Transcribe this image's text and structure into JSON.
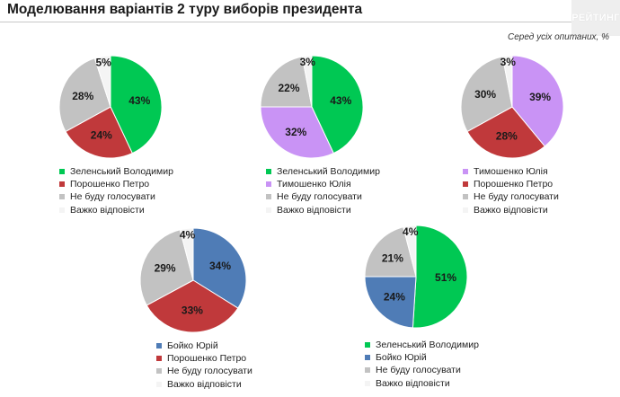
{
  "title": "Моделювання варіантів 2 туру виборів президента",
  "logo": "РЕЙТИНГ",
  "subtitle": "Серед усіх опитаних, %",
  "colors": {
    "green": "#00c853",
    "red": "#c0393b",
    "gray": "#c2c2c2",
    "white": "#f4f4f4",
    "purple": "#c993f5",
    "blue": "#4f7cb6"
  },
  "chart_data": [
    {
      "type": "pie",
      "slices": [
        {
          "label": "Зеленський Володимир",
          "value": 43,
          "color": "#00c853"
        },
        {
          "label": "Порошенко Петро",
          "value": 24,
          "color": "#c0393b"
        },
        {
          "label": "Не буду голосувати",
          "value": 28,
          "color": "#c2c2c2"
        },
        {
          "label": "Важко відповісти",
          "value": 5,
          "color": "#f4f4f4"
        }
      ]
    },
    {
      "type": "pie",
      "slices": [
        {
          "label": "Зеленський Володимир",
          "value": 43,
          "color": "#00c853"
        },
        {
          "label": "Тимошенко Юлія",
          "value": 32,
          "color": "#c993f5"
        },
        {
          "label": "Не буду голосувати",
          "value": 22,
          "color": "#c2c2c2"
        },
        {
          "label": "Важко відповісти",
          "value": 3,
          "color": "#f4f4f4"
        }
      ]
    },
    {
      "type": "pie",
      "slices": [
        {
          "label": "Тимошенко Юлія",
          "value": 39,
          "color": "#c993f5"
        },
        {
          "label": "Порошенко Петро",
          "value": 28,
          "color": "#c0393b"
        },
        {
          "label": "Не буду голосувати",
          "value": 30,
          "color": "#c2c2c2"
        },
        {
          "label": "Важко відповісти",
          "value": 3,
          "color": "#f4f4f4"
        }
      ]
    },
    {
      "type": "pie",
      "slices": [
        {
          "label": "Бойко Юрій",
          "value": 34,
          "color": "#4f7cb6"
        },
        {
          "label": "Порошенко Петро",
          "value": 33,
          "color": "#c0393b"
        },
        {
          "label": "Не буду голосувати",
          "value": 29,
          "color": "#c2c2c2"
        },
        {
          "label": "Важко відповісти",
          "value": 4,
          "color": "#f4f4f4"
        }
      ]
    },
    {
      "type": "pie",
      "slices": [
        {
          "label": "Зеленський Володимир",
          "value": 51,
          "color": "#00c853"
        },
        {
          "label": "Бойко Юрій",
          "value": 24,
          "color": "#4f7cb6"
        },
        {
          "label": "Не буду голосувати",
          "value": 21,
          "color": "#c2c2c2"
        },
        {
          "label": "Важко відповісти",
          "value": 4,
          "color": "#f4f4f4"
        }
      ]
    }
  ]
}
